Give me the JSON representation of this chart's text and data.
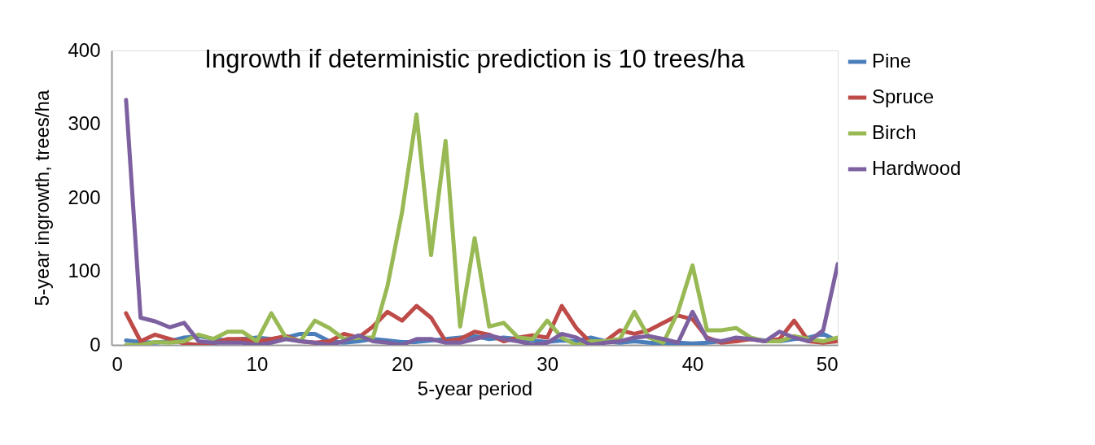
{
  "chart_data": {
    "type": "line",
    "title": "Ingrowth if deterministic  prediction  is 10 trees/ha",
    "xlabel": "5-year period",
    "ylabel": "5-year ingrowth, trees/ha",
    "x": [
      1,
      2,
      3,
      4,
      5,
      6,
      7,
      8,
      9,
      10,
      11,
      12,
      13,
      14,
      15,
      16,
      17,
      18,
      19,
      20,
      21,
      22,
      23,
      24,
      25,
      26,
      27,
      28,
      29,
      30,
      31,
      32,
      33,
      34,
      35,
      36,
      37,
      38,
      39,
      40,
      41,
      42,
      43,
      44,
      45,
      46,
      47,
      48,
      49,
      50
    ],
    "xlim": [
      0,
      50
    ],
    "xticks": [
      0,
      10,
      20,
      30,
      40,
      50
    ],
    "ylim": [
      0,
      400
    ],
    "yticks": [
      0,
      100,
      200,
      300,
      400
    ],
    "grid": false,
    "legend": "right",
    "line_style": "solid",
    "marker": "none",
    "series": [
      {
        "name": "Pine",
        "color": "#4a7ebb",
        "values": [
          6,
          4,
          3,
          5,
          10,
          12,
          8,
          6,
          8,
          10,
          8,
          10,
          15,
          15,
          5,
          3,
          5,
          8,
          6,
          4,
          4,
          6,
          8,
          10,
          12,
          8,
          10,
          8,
          6,
          4,
          6,
          5,
          10,
          5,
          3,
          5,
          3,
          2,
          3,
          2,
          3,
          5,
          8,
          8,
          6,
          5,
          8,
          10,
          15,
          5
        ]
      },
      {
        "name": "Spruce",
        "color": "#be4b48",
        "values": [
          43,
          5,
          14,
          8,
          2,
          0,
          2,
          8,
          8,
          5,
          8,
          12,
          5,
          3,
          5,
          15,
          10,
          25,
          45,
          33,
          53,
          37,
          5,
          8,
          18,
          14,
          5,
          10,
          13,
          10,
          53,
          23,
          3,
          5,
          20,
          15,
          20,
          30,
          40,
          35,
          10,
          3,
          5,
          8,
          5,
          8,
          33,
          5,
          3,
          5
        ]
      },
      {
        "name": "Birch",
        "color": "#98b954",
        "values": [
          0,
          0,
          4,
          3,
          5,
          14,
          8,
          18,
          18,
          5,
          43,
          10,
          5,
          33,
          23,
          8,
          10,
          10,
          80,
          180,
          313,
          122,
          277,
          25,
          145,
          25,
          30,
          10,
          8,
          33,
          10,
          0,
          5,
          5,
          8,
          45,
          10,
          3,
          45,
          108,
          20,
          20,
          23,
          10,
          5,
          5,
          12,
          8,
          5,
          10
        ]
      },
      {
        "name": "Hardwood",
        "color": "#7d60a0",
        "values": [
          333,
          37,
          32,
          24,
          30,
          5,
          3,
          3,
          3,
          0,
          3,
          8,
          5,
          3,
          0,
          5,
          13,
          5,
          3,
          0,
          8,
          8,
          3,
          3,
          8,
          13,
          8,
          5,
          0,
          3,
          15,
          10,
          0,
          3,
          5,
          10,
          12,
          8,
          3,
          45,
          8,
          5,
          10,
          8,
          5,
          18,
          10,
          5,
          20,
          110
        ]
      }
    ]
  }
}
